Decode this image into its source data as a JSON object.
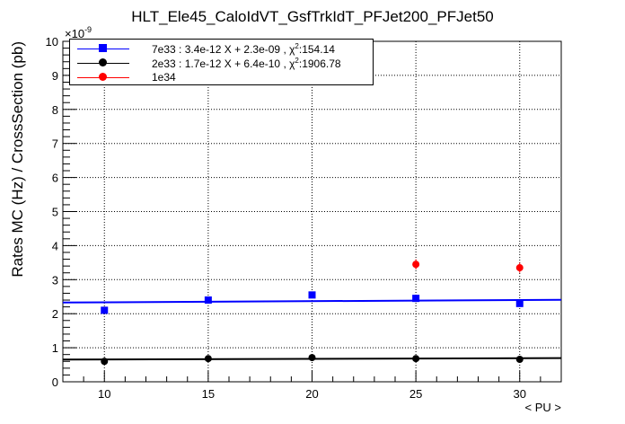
{
  "chart_data": {
    "type": "scatter",
    "title": "HLT_Ele45_CaloIdVT_GsfTrkIdT_PFJet200_PFJet50",
    "xlabel": "< PU >",
    "ylabel": "Rates MC (Hz) / CrossSection (pb)",
    "y_exponent": "×10",
    "y_exponent_power": "-9",
    "xlim": [
      8,
      32
    ],
    "ylim": [
      0,
      10
    ],
    "x_ticks": [
      "10",
      "15",
      "20",
      "25",
      "30"
    ],
    "y_ticks": [
      "0",
      "1",
      "2",
      "3",
      "4",
      "5",
      "6",
      "7",
      "8",
      "9",
      "10"
    ],
    "grid": true,
    "legend_position": "top-left",
    "series": [
      {
        "name": "7e33",
        "legend_label": "7e33 : 3.4e-12 X + 2.3e-09 , χ",
        "legend_power": "2",
        "legend_tail": ":154.14",
        "color": "#0000ff",
        "marker": "square",
        "x": [
          10,
          15,
          20,
          25,
          30
        ],
        "y": [
          2.1,
          2.4,
          2.55,
          2.45,
          2.3
        ],
        "fit": {
          "slope": 0.0034,
          "intercept": 2.3
        }
      },
      {
        "name": "2e33",
        "legend_label": "2e33 : 1.7e-12 X + 6.4e-10 , χ",
        "legend_power": "2",
        "legend_tail": ":1906.78",
        "color": "#000000",
        "marker": "circle",
        "x": [
          10,
          15,
          20,
          25,
          30
        ],
        "y": [
          0.6,
          0.68,
          0.71,
          0.68,
          0.66
        ],
        "fit": {
          "slope": 0.0017,
          "intercept": 0.64
        }
      },
      {
        "name": "1e34",
        "legend_label": "1e34",
        "color": "#ff0000",
        "marker": "circle",
        "x": [
          25,
          30
        ],
        "y": [
          3.45,
          3.35
        ],
        "yerr": [
          0.15,
          0.15
        ]
      }
    ]
  }
}
